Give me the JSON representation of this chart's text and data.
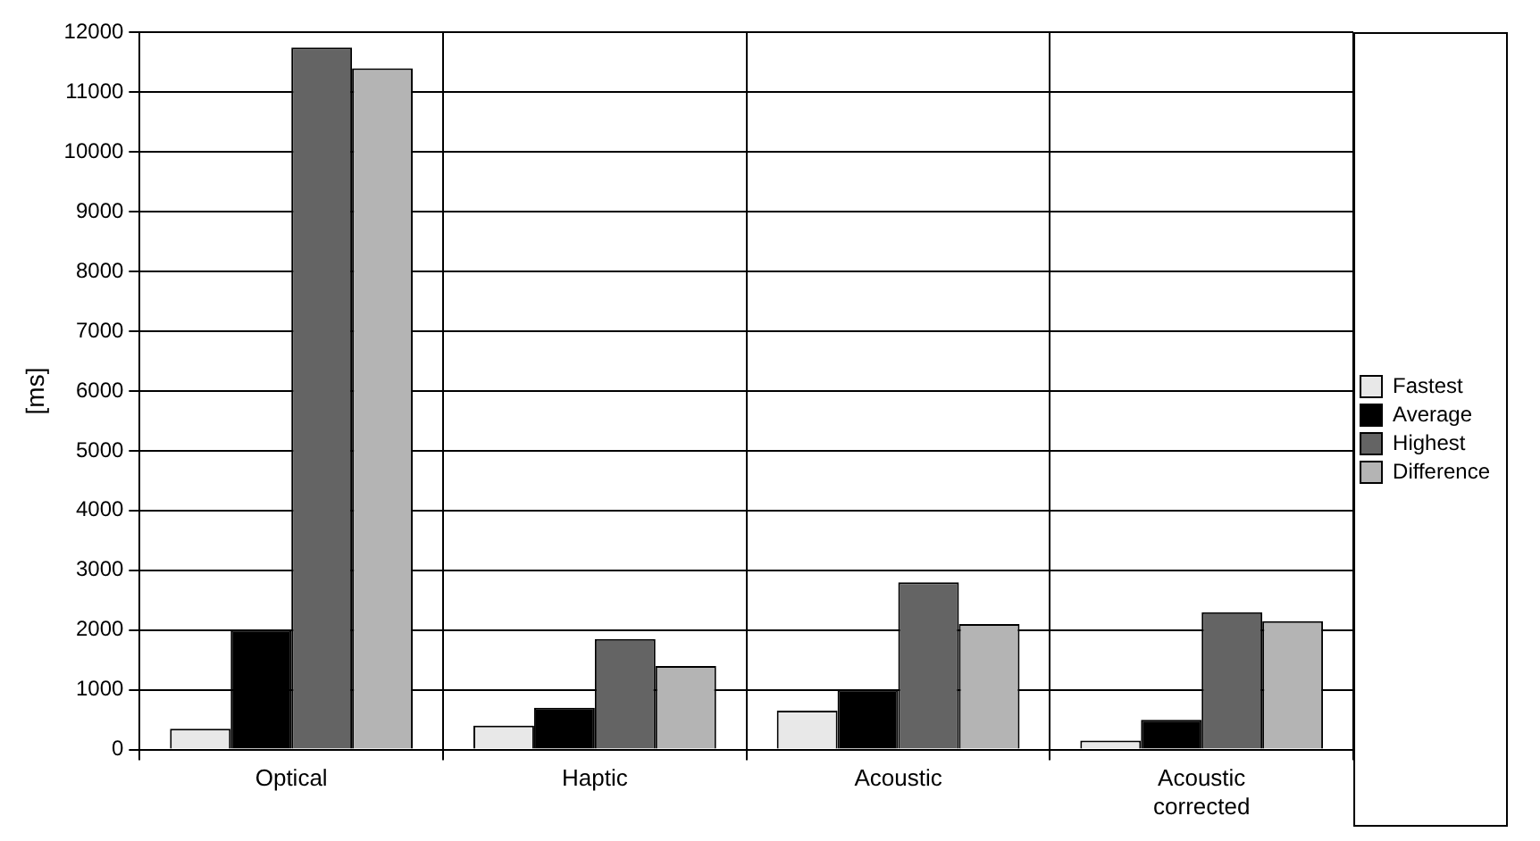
{
  "chart_data": {
    "type": "bar",
    "ylabel": "[ms]",
    "categories": [
      "Optical",
      "Haptic",
      "Acoustic",
      "Acoustic corrected"
    ],
    "series": [
      {
        "name": "Fastest",
        "color": "#e8e8e8",
        "values": [
          350,
          400,
          650,
          150
        ]
      },
      {
        "name": "Average",
        "color": "#000000",
        "values": [
          2000,
          700,
          1000,
          500
        ]
      },
      {
        "name": "Highest",
        "color": "#646464",
        "values": [
          11750,
          1850,
          2800,
          2300
        ]
      },
      {
        "name": "Difference",
        "color": "#b4b4b4",
        "values": [
          11400,
          1400,
          2100,
          2150
        ]
      }
    ],
    "ylim": [
      0,
      12000
    ],
    "yticks": [
      0,
      1000,
      2000,
      3000,
      4000,
      5000,
      6000,
      7000,
      8000,
      9000,
      10000,
      11000,
      12000
    ],
    "grid": true,
    "legend": "right"
  }
}
